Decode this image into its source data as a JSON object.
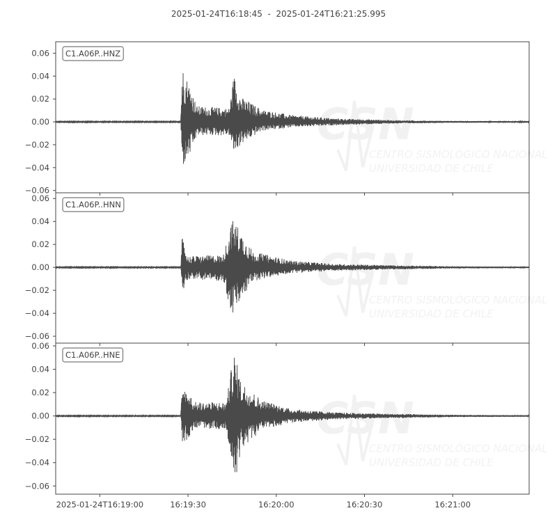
{
  "chart_data": {
    "type": "line",
    "title": "2025-01-24T16:18:45  -  2025-01-24T16:21:25.995",
    "time_range": [
      "2025-01-24T16:18:45",
      "2025-01-24T16:21:25.995"
    ],
    "x_ticks": [
      "2025-01-24T16:19:00",
      "16:19:30",
      "16:20:00",
      "16:20:30",
      "16:21:00"
    ],
    "x_tick_times": [
      "16:19:00",
      "16:19:30",
      "16:20:00",
      "16:20:30",
      "16:21:00"
    ],
    "y_ticks": [
      "0.06",
      "0.04",
      "0.02",
      "0.00",
      "−0.02",
      "−0.04",
      "−0.06"
    ],
    "grid": false,
    "line_color": "#4a4a4a",
    "watermark": {
      "logo": "CSN",
      "line1": "CENTRO SISMOLÓGICO NACIONAL",
      "line2": "UNIVERSIDAD DE CHILE"
    },
    "series": [
      {
        "name": "C1.A06P..HNZ",
        "ylim": [
          -0.062,
          0.07
        ],
        "envelope": [
          [
            "16:18:45",
            0.0004,
            -0.0004
          ],
          [
            "16:19:27.5",
            0.0004,
            -0.0004
          ],
          [
            "16:19:28",
            0.05,
            -0.041
          ],
          [
            "16:19:31",
            0.03,
            -0.028
          ],
          [
            "16:19:33",
            0.014,
            -0.012
          ],
          [
            "16:19:44",
            0.012,
            -0.012
          ],
          [
            "16:19:45.6",
            0.042,
            -0.028
          ],
          [
            "16:19:48",
            0.022,
            -0.02
          ],
          [
            "16:19:55",
            0.011,
            -0.008
          ],
          [
            "16:20:05",
            0.006,
            -0.005
          ],
          [
            "16:20:20",
            0.003,
            -0.003
          ],
          [
            "16:20:40",
            0.0015,
            -0.0015
          ],
          [
            "16:21:00",
            0.0008,
            -0.0008
          ],
          [
            "16:21:25.995",
            0.0005,
            -0.0005
          ]
        ]
      },
      {
        "name": "C1.A06P..HNN",
        "ylim": [
          -0.066,
          0.065
        ],
        "envelope": [
          [
            "16:18:45",
            0.0004,
            -0.0004
          ],
          [
            "16:19:27.5",
            0.0004,
            -0.0004
          ],
          [
            "16:19:28",
            0.026,
            -0.022
          ],
          [
            "16:19:30",
            0.01,
            -0.01
          ],
          [
            "16:19:42",
            0.011,
            -0.012
          ],
          [
            "16:19:45",
            0.042,
            -0.043
          ],
          [
            "16:19:47",
            0.036,
            -0.034
          ],
          [
            "16:19:52",
            0.014,
            -0.012
          ],
          [
            "16:20:05",
            0.006,
            -0.005
          ],
          [
            "16:20:20",
            0.003,
            -0.003
          ],
          [
            "16:20:40",
            0.0018,
            -0.0018
          ],
          [
            "16:21:00",
            0.001,
            -0.001
          ],
          [
            "16:21:25.995",
            0.0006,
            -0.0006
          ]
        ]
      },
      {
        "name": "C1.A06P..HNE",
        "ylim": [
          -0.067,
          0.0624
        ],
        "envelope": [
          [
            "16:18:45",
            0.0004,
            -0.0004
          ],
          [
            "16:19:27.5",
            0.0004,
            -0.0004
          ],
          [
            "16:19:28",
            0.026,
            -0.023
          ],
          [
            "16:19:30",
            0.022,
            -0.02
          ],
          [
            "16:19:32",
            0.012,
            -0.01
          ],
          [
            "16:19:43",
            0.012,
            -0.012
          ],
          [
            "16:19:45.6",
            0.056,
            -0.061
          ],
          [
            "16:19:48",
            0.03,
            -0.03
          ],
          [
            "16:19:55",
            0.014,
            -0.012
          ],
          [
            "16:20:05",
            0.006,
            -0.006
          ],
          [
            "16:20:20",
            0.003,
            -0.003
          ],
          [
            "16:20:40",
            0.0018,
            -0.0018
          ],
          [
            "16:21:00",
            0.001,
            -0.001
          ],
          [
            "16:21:25.995",
            0.0006,
            -0.0006
          ]
        ]
      }
    ]
  }
}
